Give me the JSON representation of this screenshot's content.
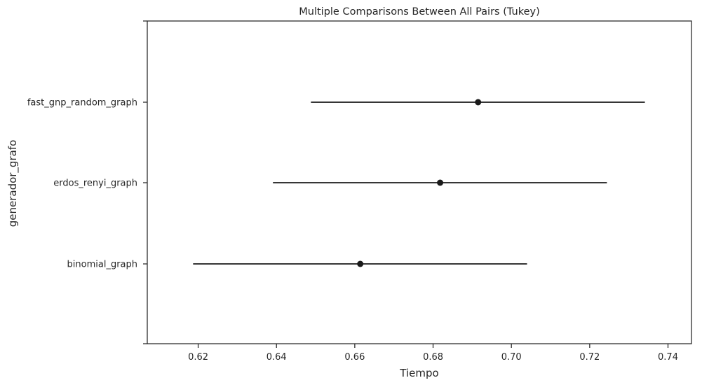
{
  "chart_data": {
    "type": "scatter",
    "subtype": "interval-plot",
    "title": "Multiple Comparisons Between All Pairs (Tukey)",
    "xlabel": "Tiempo",
    "ylabel": "generador_grafo",
    "xlim": [
      0.607,
      0.746
    ],
    "xticks": [
      0.62,
      0.64,
      0.66,
      0.68,
      0.7,
      0.72,
      0.74
    ],
    "xtick_labels": [
      "0.62",
      "0.64",
      "0.66",
      "0.68",
      "0.70",
      "0.72",
      "0.74"
    ],
    "grid": false,
    "categories": [
      "fast_gnp_random_graph",
      "erdos_renyi_graph",
      "binomial_graph"
    ],
    "series": [
      {
        "category": "fast_gnp_random_graph",
        "mean": 0.6915,
        "lower": 0.6488,
        "upper": 0.7341
      },
      {
        "category": "erdos_renyi_graph",
        "mean": 0.6818,
        "lower": 0.6391,
        "upper": 0.7244
      },
      {
        "category": "binomial_graph",
        "mean": 0.6614,
        "lower": 0.6187,
        "upper": 0.704
      }
    ],
    "colors": {
      "marker": "#1a1a1a",
      "line": "#1a1a1a",
      "axis": "#262626"
    }
  }
}
